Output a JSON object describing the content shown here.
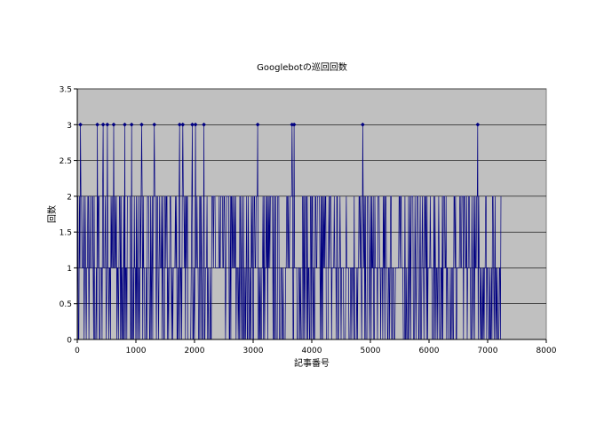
{
  "chart_data": {
    "type": "line",
    "title": "Googlebotの巡回回数",
    "xlabel": "記事番号",
    "ylabel": "回数",
    "xlim": [
      0,
      8000
    ],
    "ylim": [
      0,
      3.5
    ],
    "x_ticks": [
      "0",
      "1000",
      "2000",
      "3000",
      "4000",
      "5000",
      "6000",
      "7000",
      "8000"
    ],
    "y_ticks": [
      "0",
      "0.5",
      "1",
      "1.5",
      "2",
      "2.5",
      "3",
      "3.5"
    ],
    "grid": true,
    "legend": "none",
    "plot_background": "#c0c0c0",
    "series": [
      {
        "color": "#000080",
        "x_range": [
          0,
          7230
        ],
        "values_observed": [
          0,
          1,
          2,
          3
        ],
        "peaks_at_3": [
          0,
          50,
          340,
          440,
          510,
          620,
          810,
          930,
          1100,
          1310,
          1750,
          1800,
          1960,
          2020,
          2160,
          3080,
          3660,
          3700,
          4870,
          6830
        ]
      }
    ]
  }
}
